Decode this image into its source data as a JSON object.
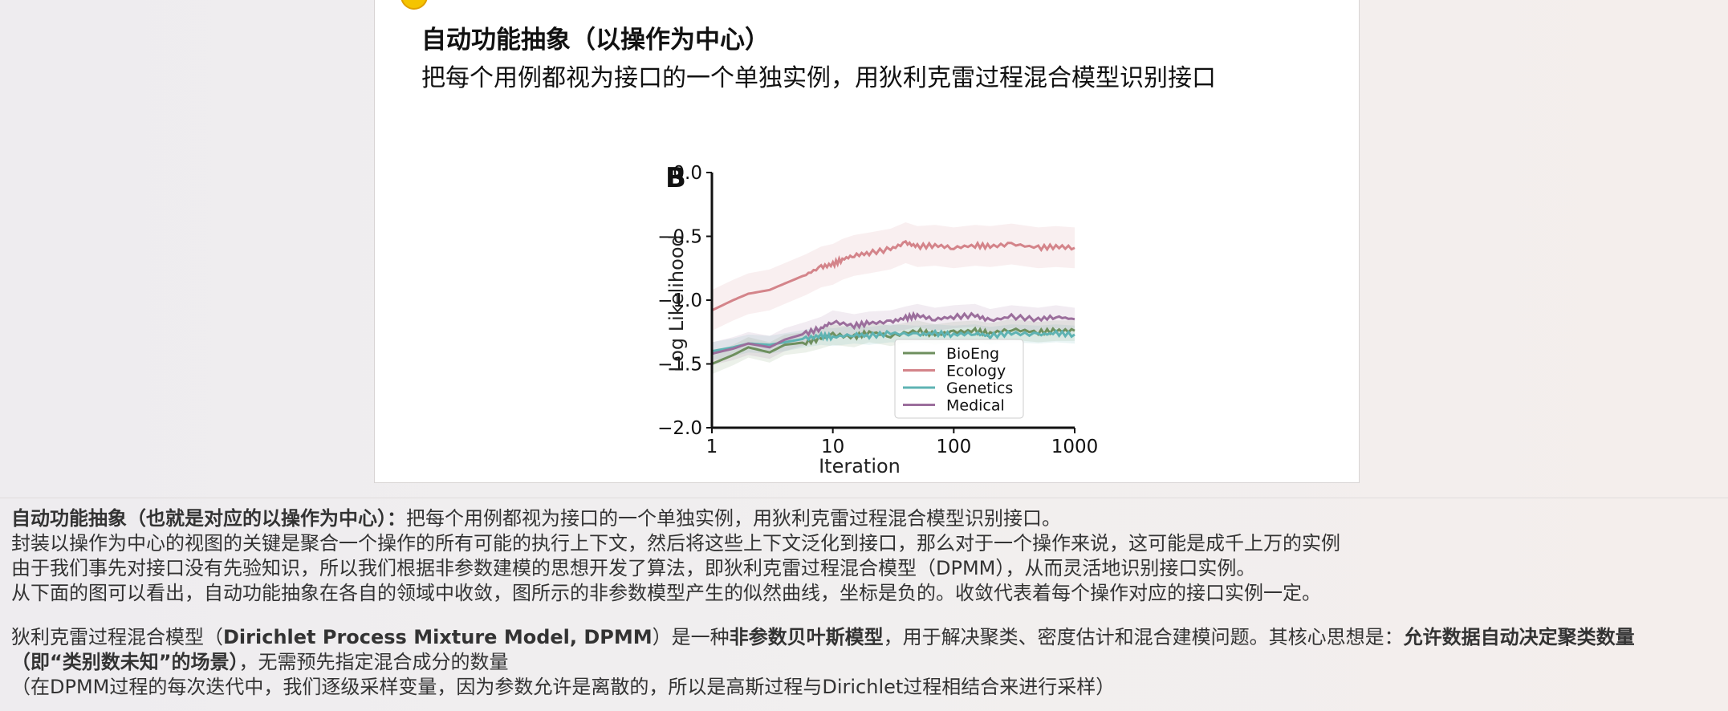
{
  "slide": {
    "title": "自动功能抽象（以操作为中心）",
    "subtitle": "把每个用例都视为接口的一个单独实例，用狄利克雷过程混合模型识别接口",
    "panel_letter": "B"
  },
  "chart_data": {
    "type": "line",
    "xlabel": "Iteration",
    "ylabel": "Log Likelihood",
    "x_scale": "log",
    "xlim": [
      1,
      1000
    ],
    "ylim": [
      -2.0,
      0.0
    ],
    "x_ticks": [
      "1",
      "10",
      "100",
      "1000"
    ],
    "y_ticks": [
      "0.0",
      "−0.5",
      "−1.0",
      "−1.5",
      "−2.0"
    ],
    "legend_position": "lower-right",
    "series": [
      {
        "name": "BioEng",
        "color": "#6e8f5e",
        "x": [
          1,
          1.5,
          2,
          3,
          4,
          6,
          8,
          10,
          15,
          20,
          30,
          50,
          70,
          100,
          150,
          200,
          300,
          500,
          700,
          1000
        ],
        "y": [
          -1.5,
          -1.43,
          -1.37,
          -1.41,
          -1.35,
          -1.33,
          -1.3,
          -1.27,
          -1.29,
          -1.25,
          -1.28,
          -1.24,
          -1.27,
          -1.25,
          -1.24,
          -1.26,
          -1.23,
          -1.25,
          -1.24,
          -1.24
        ],
        "band": 0.08
      },
      {
        "name": "Ecology",
        "color": "#d4848a",
        "x": [
          1,
          1.5,
          2,
          3,
          4,
          6,
          8,
          10,
          12,
          15,
          20,
          30,
          40,
          50,
          70,
          100,
          150,
          200,
          300,
          500,
          700,
          1000
        ],
        "y": [
          -1.08,
          -1.0,
          -0.95,
          -0.92,
          -0.87,
          -0.8,
          -0.74,
          -0.72,
          -0.68,
          -0.65,
          -0.63,
          -0.6,
          -0.55,
          -0.58,
          -0.57,
          -0.59,
          -0.57,
          -0.58,
          -0.56,
          -0.59,
          -0.58,
          -0.59
        ],
        "band": 0.16
      },
      {
        "name": "Genetics",
        "color": "#5eb3b3",
        "x": [
          1,
          1.5,
          2,
          3,
          4,
          6,
          8,
          10,
          15,
          20,
          30,
          50,
          70,
          100,
          150,
          200,
          300,
          500,
          700,
          1000
        ],
        "y": [
          -1.4,
          -1.37,
          -1.34,
          -1.35,
          -1.33,
          -1.3,
          -1.28,
          -1.29,
          -1.27,
          -1.28,
          -1.26,
          -1.27,
          -1.26,
          -1.27,
          -1.26,
          -1.28,
          -1.26,
          -1.27,
          -1.26,
          -1.27
        ],
        "band": 0.07
      },
      {
        "name": "Medical",
        "color": "#9b6e9c",
        "x": [
          1,
          1.5,
          2,
          3,
          4,
          6,
          8,
          10,
          15,
          20,
          30,
          40,
          50,
          70,
          100,
          150,
          200,
          300,
          500,
          700,
          1000
        ],
        "y": [
          -1.42,
          -1.38,
          -1.34,
          -1.37,
          -1.31,
          -1.26,
          -1.22,
          -1.17,
          -1.2,
          -1.18,
          -1.17,
          -1.14,
          -1.12,
          -1.15,
          -1.13,
          -1.12,
          -1.16,
          -1.13,
          -1.15,
          -1.13,
          -1.15
        ],
        "band": 0.09
      }
    ]
  },
  "notes": {
    "line1_bold": "自动功能抽象（也就是对应的以操作为中心）：",
    "line1_rest": "把每个用例都视为接口的一个单独实例，用狄利克雷过程混合模型识别接口。",
    "line2": "封装以操作为中心的视图的关键是聚合一个操作的所有可能的执行上下文，然后将这些上下文泛化到接口，那么对于一个操作来说，这可能是成千上万的实例",
    "line3": "由于我们事先对接口没有先验知识，所以我们根据非参数建模的思想开发了算法，即狄利克雷过程混合模型（DPMM），从而灵活地识别接口实例。",
    "line4": "从下面的图可以看出，自动功能抽象在各自的领域中收敛，图所示的非参数模型产生的似然曲线，坐标是负的。收敛代表着每个操作对应的接口实例一定。",
    "line5_a": "狄利克雷过程混合模型（",
    "line5_b_bold": "Dirichlet Process Mixture Model, DPMM",
    "line5_c": "）是一种",
    "line5_d_bold": "非参数贝叶斯模型",
    "line5_e": "，用于解决聚类、密度估计和混合建模问题。其核心思想是：",
    "line5_f_bold": "允许数据自动决定聚类数量",
    "line6_a_bold": "（即“类别数未知”的场景）",
    "line6_b": "，无需预先指定混合成分的数量",
    "line7": "（在DPMM过程的每次迭代中，我们逐级采样变量，因为参数允许是离散的，所以是高斯过程与Dirichlet过程相结合来进行采样）"
  }
}
